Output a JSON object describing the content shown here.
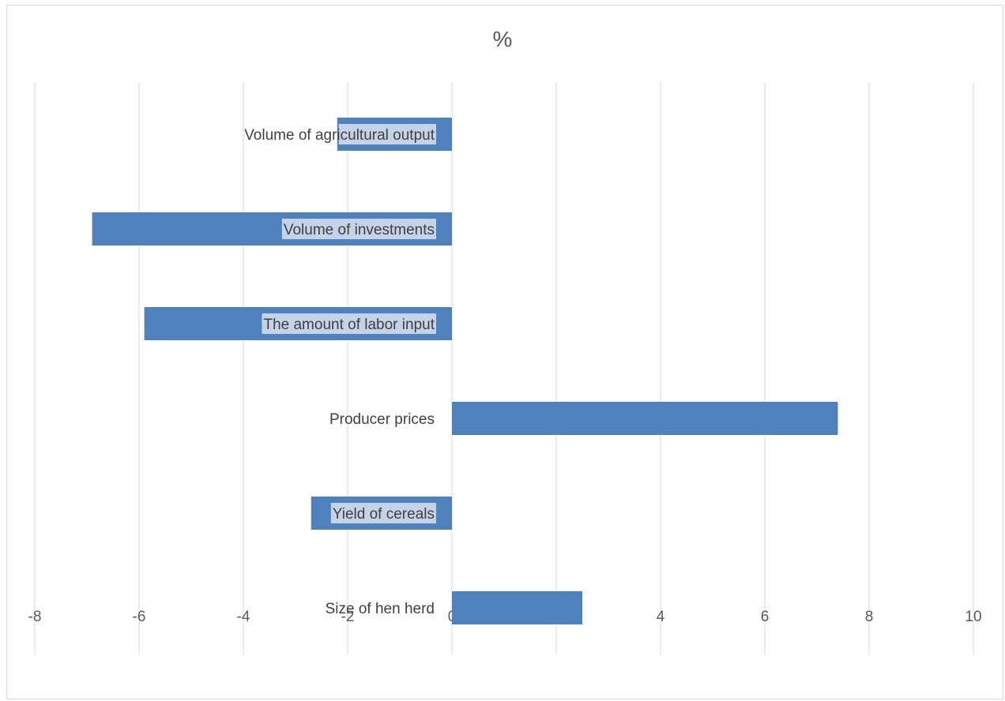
{
  "chart_data": {
    "type": "bar",
    "orientation": "horizontal",
    "title": "%",
    "categories": [
      "Volume of agricultural output",
      "Volume of investments",
      "The amount of labor input",
      "Producer prices",
      "Yield of cereals",
      "Size of hen herd"
    ],
    "values": [
      -2.2,
      -6.9,
      -5.9,
      7.4,
      -2.7,
      2.5
    ],
    "xlim": [
      -8,
      10
    ],
    "xticks": [
      -8,
      -6,
      -4,
      -2,
      0,
      2,
      4,
      6,
      8,
      10
    ],
    "xtick_labels": [
      "-8",
      "-6",
      "-4",
      "-2",
      "0",
      "2",
      "4",
      "6",
      "8",
      "10"
    ],
    "grid": "vertical",
    "bar_color": "#4f81bd",
    "label_highlight_color": "#c5d3e8",
    "legend": "none"
  }
}
